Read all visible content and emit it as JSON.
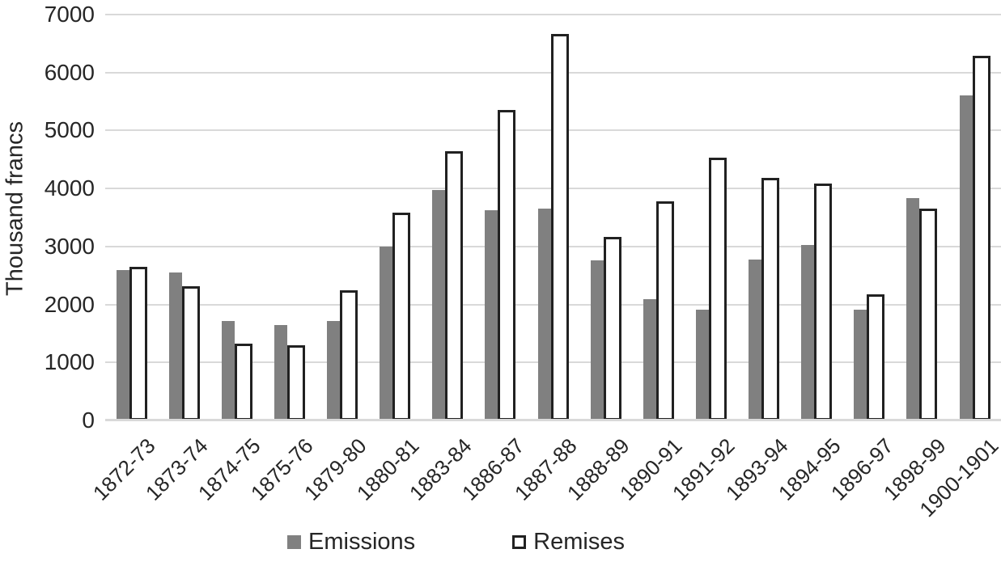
{
  "chart_data": {
    "type": "bar",
    "title": "",
    "xlabel": "",
    "ylabel": "Thousand francs",
    "ylim": [
      0,
      7000
    ],
    "yticks": [
      0,
      1000,
      2000,
      3000,
      4000,
      5000,
      6000,
      7000
    ],
    "grid": true,
    "legend_position": "bottom",
    "categories": [
      "1872-73",
      "1873-74",
      "1874-75",
      "1875-76",
      "1879-80",
      "1880-81",
      "1883-84",
      "1886-87",
      "1887-88",
      "1888-89",
      "1890-91",
      "1891-92",
      "1893-94",
      "1894-95",
      "1896-97",
      "1898-99",
      "1900-1901"
    ],
    "series": [
      {
        "name": "Emissions",
        "fill": "#808080",
        "values": [
          2600,
          2550,
          1720,
          1650,
          1710,
          3000,
          3970,
          3620,
          3660,
          2760,
          2090,
          1910,
          2770,
          3020,
          1910,
          3840,
          5600
        ]
      },
      {
        "name": "Remises",
        "fill": "#ffffff",
        "stroke": "#212121",
        "values": [
          2650,
          2320,
          1330,
          1300,
          2240,
          3590,
          4650,
          5350,
          6660,
          3170,
          3780,
          4530,
          4190,
          4090,
          2180,
          3650,
          6290
        ]
      }
    ]
  },
  "colors": {
    "gridline": "#d9d9d9",
    "bar_gray": "#808080",
    "bar_outline": "#212121",
    "text": "#262626"
  },
  "legend": {
    "emissions_label": "Emissions",
    "remises_label": "Remises"
  }
}
